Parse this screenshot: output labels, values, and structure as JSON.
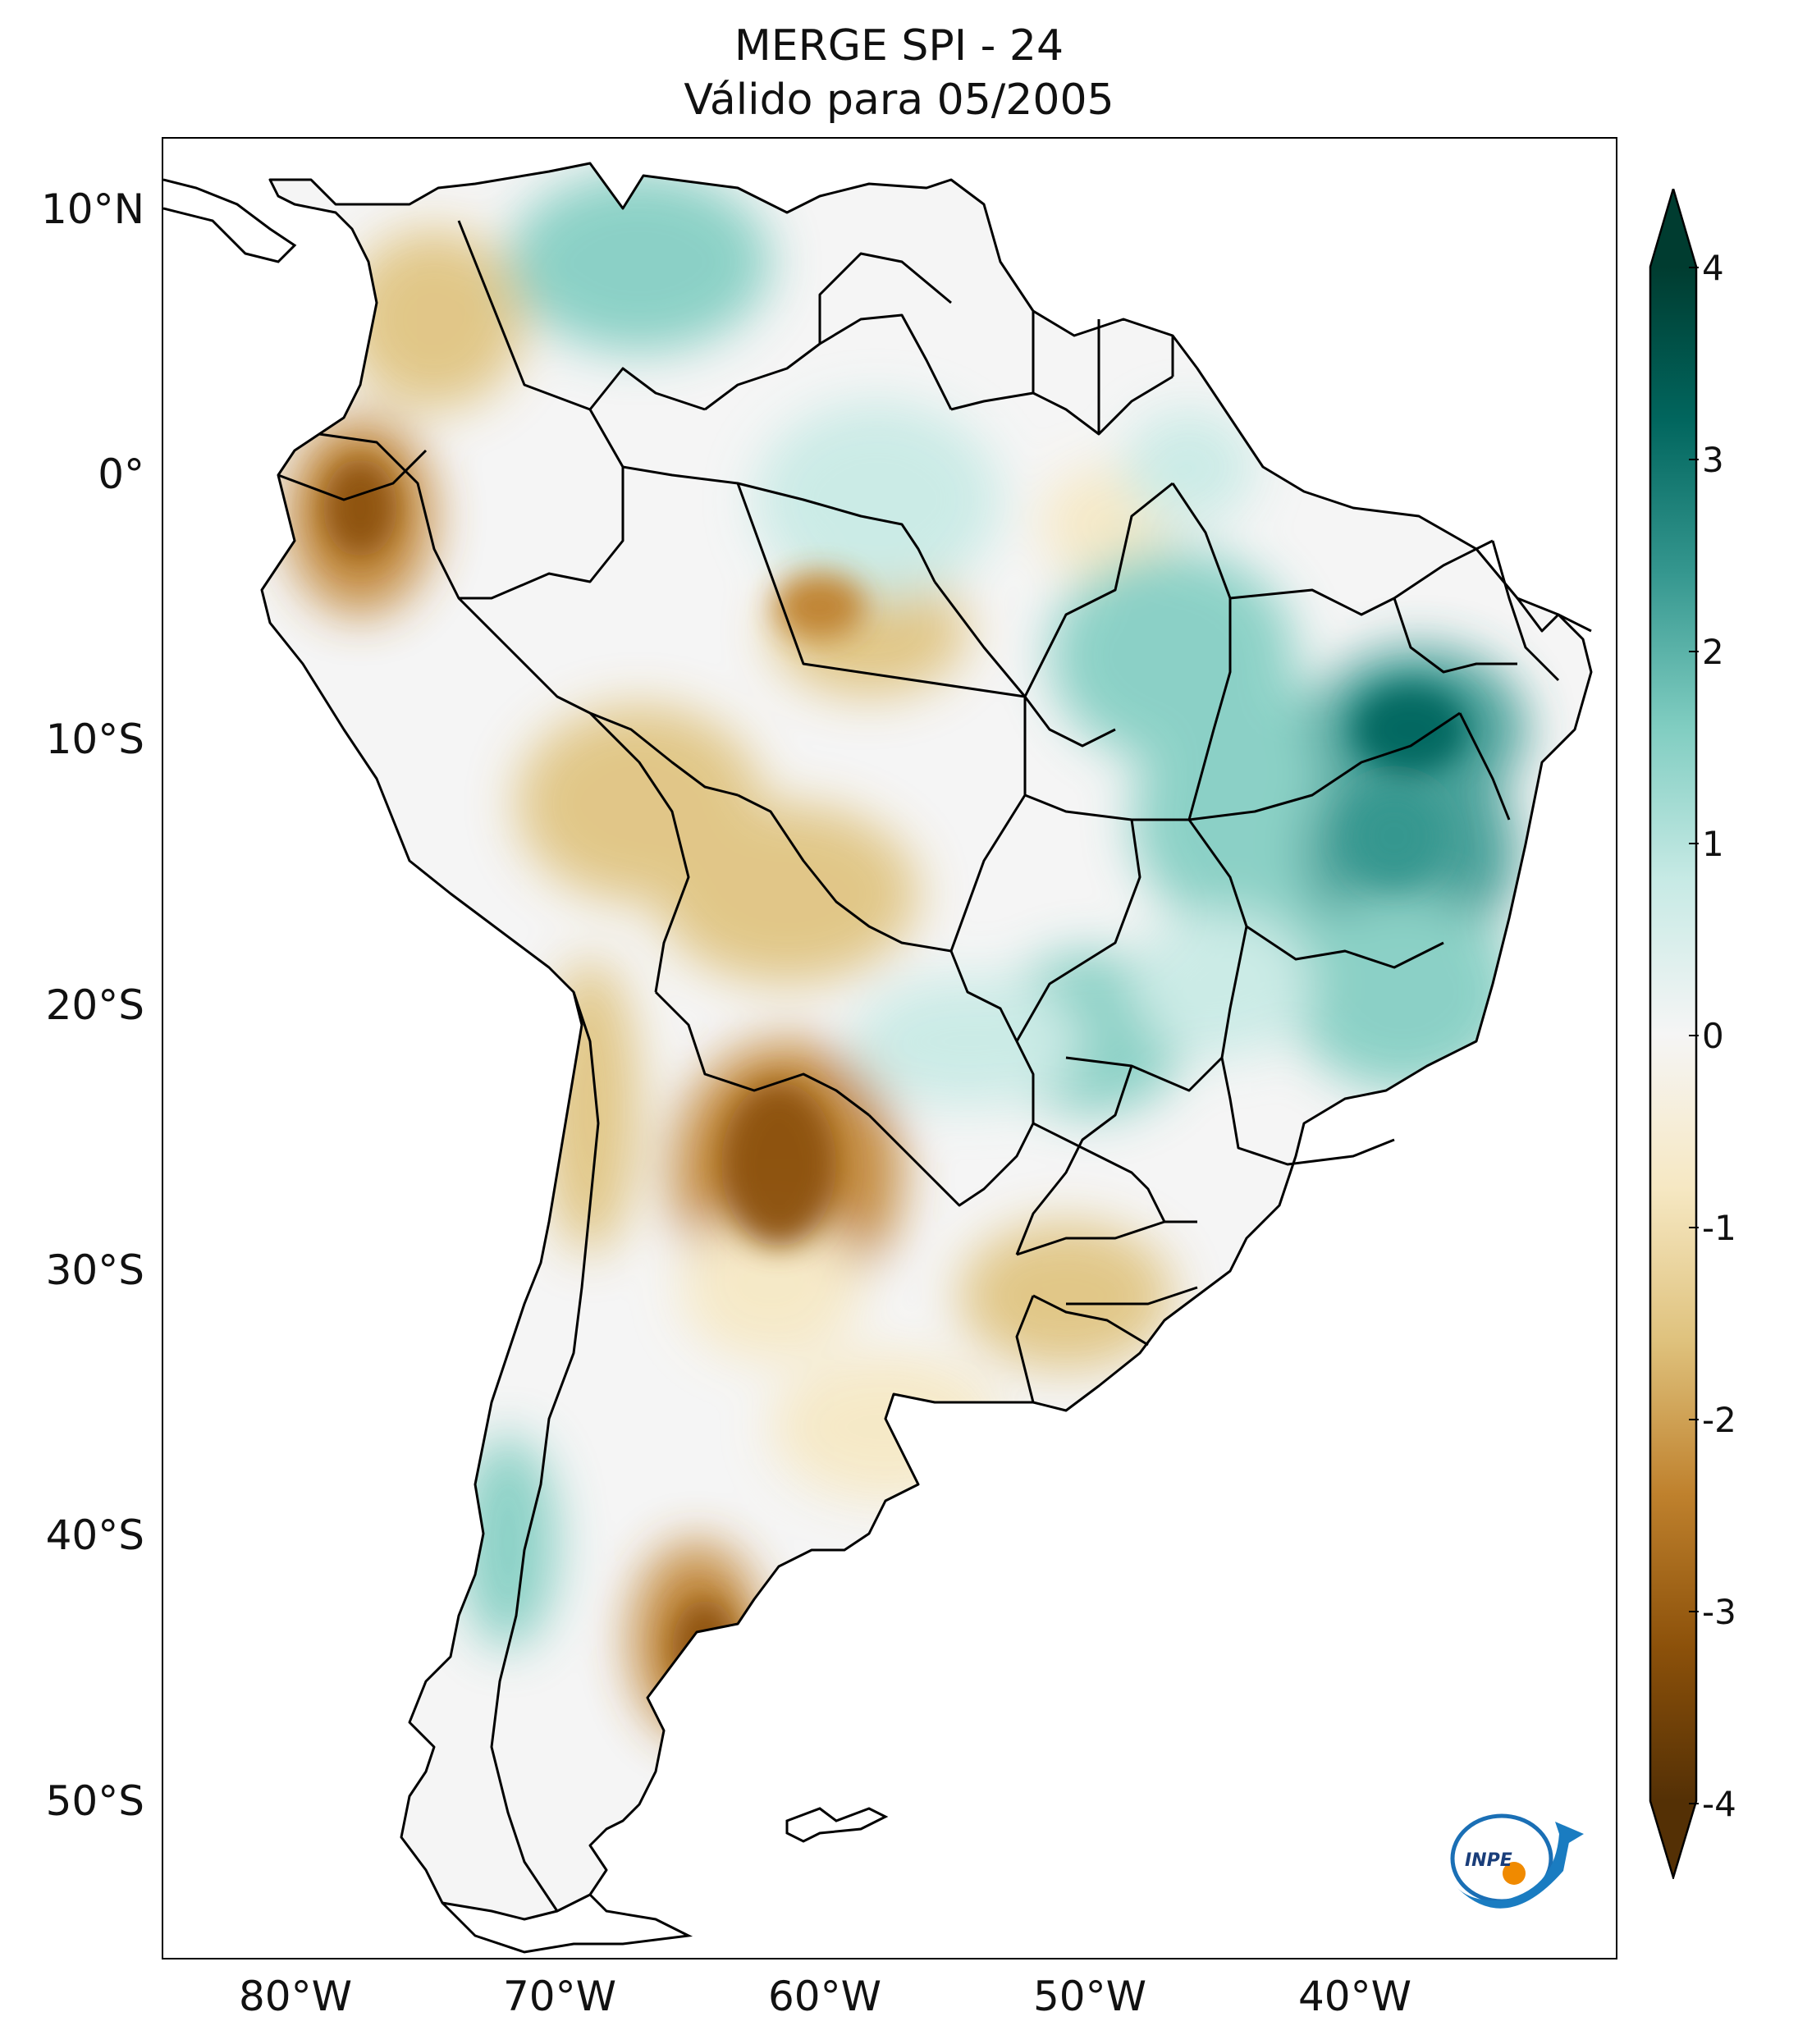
{
  "title": {
    "line1": "MERGE   SPI - 24",
    "line2": "Válido para 05/2005"
  },
  "map": {
    "lat_ticks": [
      "10°N",
      "0°",
      "10°S",
      "20°S",
      "30°S",
      "40°S",
      "50°S"
    ],
    "lon_ticks": [
      "80°W",
      "70°W",
      "60°W",
      "50°W",
      "40°W"
    ],
    "extent": {
      "lon_min": -85,
      "lon_max": -30,
      "lat_min": -56,
      "lat_max": 13
    }
  },
  "colorbar": {
    "ticks": [
      "4",
      "3",
      "2",
      "1",
      "0",
      "-1",
      "-2",
      "-3",
      "-4"
    ],
    "range": [
      -4,
      4
    ],
    "extend": "both",
    "colormap": "BrBG",
    "colors": {
      "dry_extreme": "#543005",
      "dry_strong": "#8c510a",
      "dry_moderate": "#bf812d",
      "dry_mild": "#dfc27d",
      "dry_slight": "#f6e8c3",
      "neutral": "#f5f5f5",
      "wet_slight": "#c7eae5",
      "wet_mild": "#80cdc1",
      "wet_moderate": "#35978f",
      "wet_strong": "#01665e",
      "wet_extreme": "#003c30"
    }
  },
  "logo": {
    "text": "INPE",
    "icon": "inpe-logo-icon"
  }
}
